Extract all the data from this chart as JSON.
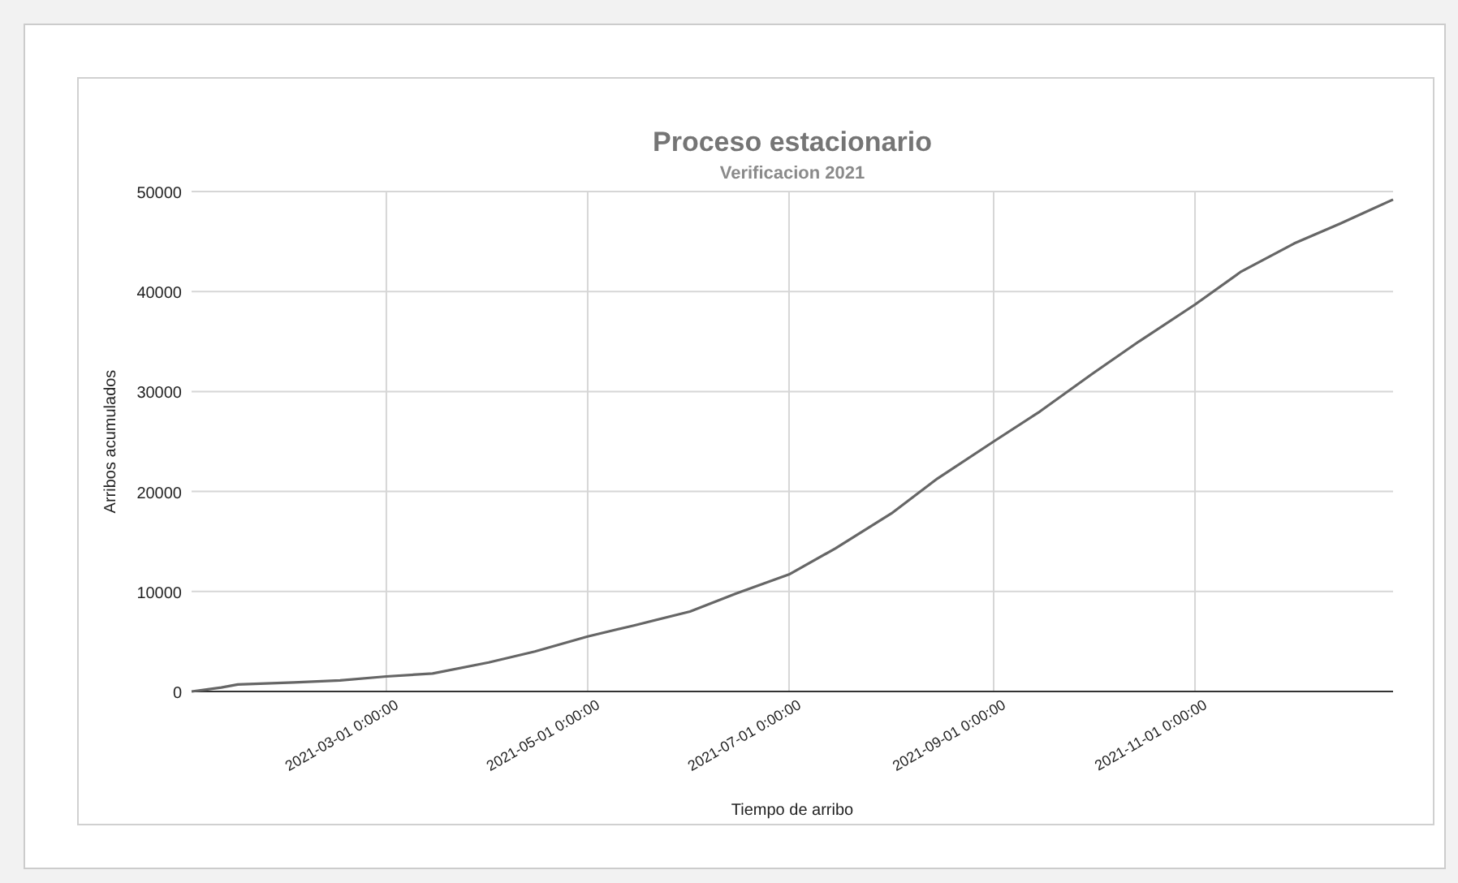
{
  "chart_data": {
    "type": "line",
    "title": "Proceso estacionario",
    "subtitle": "Verificacion 2021",
    "xlabel": "Tiempo de arribo",
    "ylabel": "Arribos acumulados",
    "x": [
      "2021-01-01",
      "2021-01-10",
      "2021-01-15",
      "2021-02-01",
      "2021-02-15",
      "2021-03-01",
      "2021-03-15",
      "2021-04-01",
      "2021-04-15",
      "2021-05-01",
      "2021-05-15",
      "2021-06-01",
      "2021-06-15",
      "2021-07-01",
      "2021-07-15",
      "2021-08-01",
      "2021-08-15",
      "2021-09-01",
      "2021-09-15",
      "2021-10-01",
      "2021-10-15",
      "2021-11-01",
      "2021-11-15",
      "2021-12-01",
      "2021-12-15",
      "2021-12-31"
    ],
    "series": [
      {
        "color": "#666666",
        "values": [
          0,
          400,
          700,
          900,
          1100,
          1500,
          1800,
          2900,
          4000,
          5500,
          6600,
          8000,
          9800,
          11700,
          14300,
          17800,
          21300,
          25000,
          28000,
          31800,
          35000,
          38700,
          42000,
          44800,
          46800,
          49200
        ]
      }
    ],
    "xlim": [
      "2021-01-01",
      "2021-12-31"
    ],
    "xticks": [
      {
        "value": "2021-03-01",
        "label": "2021-03-01 0:00:00"
      },
      {
        "value": "2021-05-01",
        "label": "2021-05-01 0:00:00"
      },
      {
        "value": "2021-07-01",
        "label": "2021-07-01 0:00:00"
      },
      {
        "value": "2021-09-01",
        "label": "2021-09-01 0:00:00"
      },
      {
        "value": "2021-11-01",
        "label": "2021-11-01 0:00:00"
      }
    ],
    "ylim": [
      0,
      50000
    ],
    "yticks": [
      0,
      10000,
      20000,
      30000,
      40000,
      50000
    ],
    "grid": true,
    "line_style": "solid",
    "marker": "none"
  }
}
